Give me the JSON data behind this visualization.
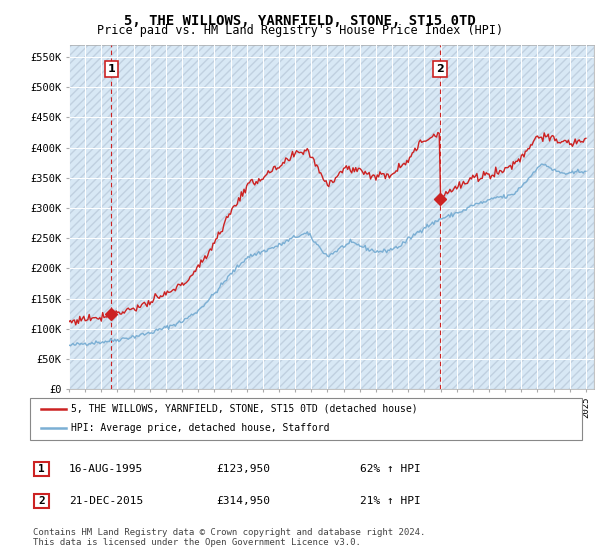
{
  "title": "5, THE WILLOWS, YARNFIELD, STONE, ST15 0TD",
  "subtitle": "Price paid vs. HM Land Registry's House Price Index (HPI)",
  "ylim": [
    0,
    570000
  ],
  "yticks": [
    0,
    50000,
    100000,
    150000,
    200000,
    250000,
    300000,
    350000,
    400000,
    450000,
    500000,
    550000
  ],
  "ytick_labels": [
    "£0",
    "£50K",
    "£100K",
    "£150K",
    "£200K",
    "£250K",
    "£300K",
    "£350K",
    "£400K",
    "£450K",
    "£500K",
    "£550K"
  ],
  "hpi_color": "#7BAFD4",
  "price_color": "#CC2222",
  "dashed_color": "#CC2222",
  "t1_year": 1995.625,
  "t1_price": 123950,
  "t2_year": 2015.958,
  "t2_price": 314950,
  "legend_line1": "5, THE WILLOWS, YARNFIELD, STONE, ST15 0TD (detached house)",
  "legend_line2": "HPI: Average price, detached house, Stafford",
  "table_row1": [
    "1",
    "16-AUG-1995",
    "£123,950",
    "62% ↑ HPI"
  ],
  "table_row2": [
    "2",
    "21-DEC-2015",
    "£314,950",
    "21% ↑ HPI"
  ],
  "footnote": "Contains HM Land Registry data © Crown copyright and database right 2024.\nThis data is licensed under the Open Government Licence v3.0.",
  "background_color": "#FFFFFF",
  "plot_bg_color": "#D8E8F5"
}
